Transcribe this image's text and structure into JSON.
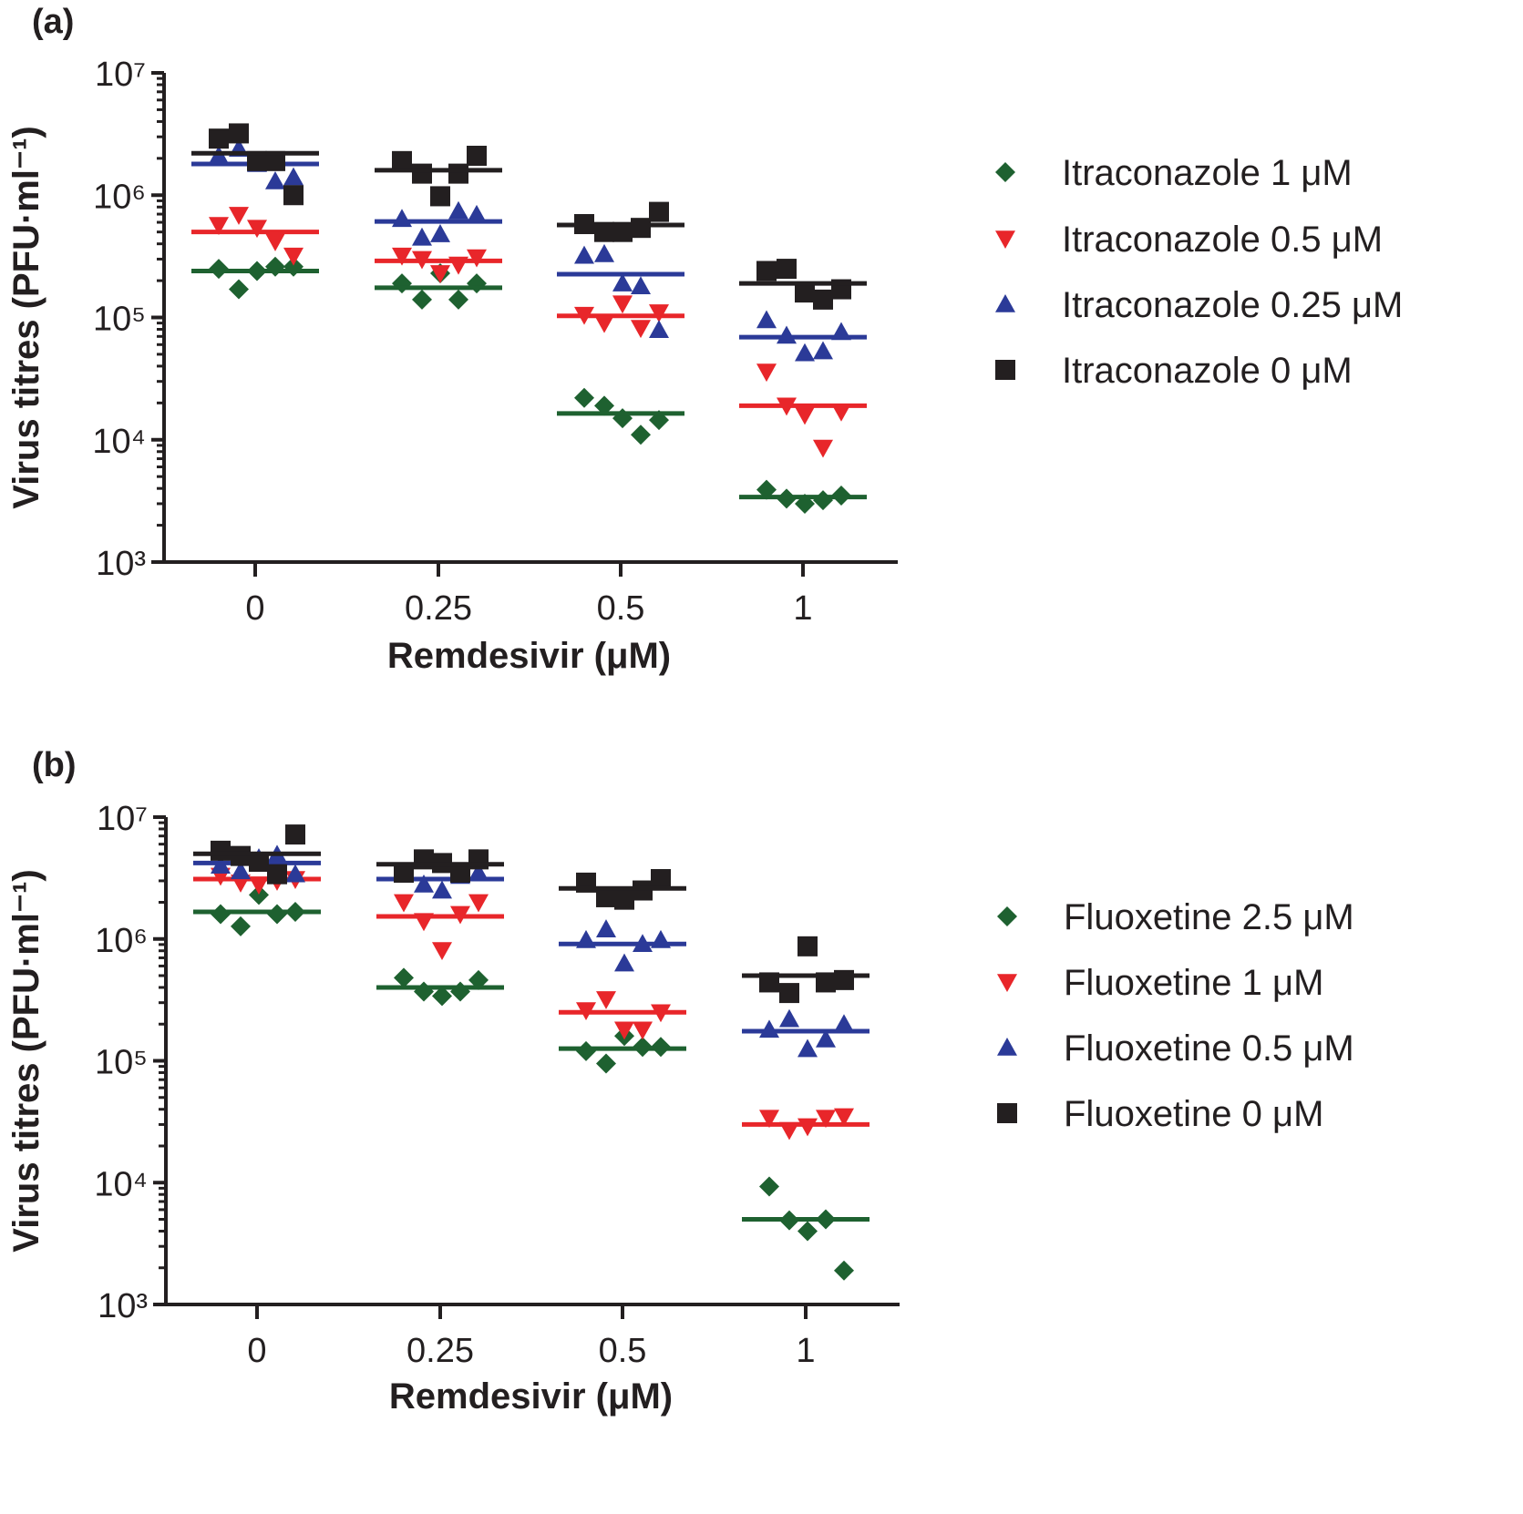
{
  "chart_data": [
    {
      "type": "scatter",
      "panel_label": "(a)",
      "xlabel": "Remdesivir (μM)",
      "ylabel": "Virus titres (PFU·ml⁻¹)",
      "y_scale": "log",
      "ylim": [
        1000,
        10000000
      ],
      "ytick_labels": [
        "10³",
        "10⁴",
        "10⁵",
        "10⁶",
        "10⁷"
      ],
      "categories": [
        "0",
        "0.25",
        "0.5",
        "1"
      ],
      "legend_position": "right",
      "series": [
        {
          "name": "Itraconazole 1 μM",
          "color": "#1e6130",
          "marker": "diamond",
          "points": [
            [
              250000.0,
              170000.0,
              240000.0,
              260000.0,
              260000.0
            ],
            [
              190000.0,
              140000.0,
              230000.0,
              140000.0,
              190000.0
            ],
            [
              22000.0,
              19000.0,
              15000.0,
              11000.0,
              14500.0
            ],
            [
              3900.0,
              3300.0,
              3000.0,
              3200.0,
              3500.0
            ]
          ],
          "means": [
            240000.0,
            175000.0,
            16400.0,
            3400.0
          ]
        },
        {
          "name": "Itraconazole 0.5 μM",
          "color": "#e8262a",
          "marker": "triangle-down",
          "points": [
            [
              570000.0,
              690000.0,
              540000.0,
              420000.0,
              320000.0
            ],
            [
              320000.0,
              300000.0,
              230000.0,
              270000.0,
              310000.0
            ],
            [
              105000.0,
              90000.0,
              130000.0,
              82000.0,
              110000.0
            ],
            [
              36000.0,
              19000.0,
              16000.0,
              8600.0,
              17000.0
            ]
          ],
          "means": [
            500000.0,
            290000.0,
            103000.0,
            19000.0
          ]
        },
        {
          "name": "Itraconazole 0.25 μM",
          "color": "#2b3a98",
          "marker": "triangle-up",
          "points": [
            [
              2100000.0,
              2400000.0,
              1800000.0,
              1300000.0,
              1400000.0
            ],
            [
              640000.0,
              450000.0,
              480000.0,
              740000.0,
              690000.0
            ],
            [
              320000.0,
              330000.0,
              190000.0,
              180000.0,
              79000.0
            ],
            [
              95000.0,
              71000.0,
              51000.0,
              53000.0,
              76000.0
            ]
          ],
          "means": [
            1800000.0,
            610000.0,
            226000.0,
            69000.0
          ]
        },
        {
          "name": "Itraconazole 0 μM",
          "color": "#231f20",
          "marker": "square",
          "points": [
            [
              2900000.0,
              3200000.0,
              1900000.0,
              1900000.0,
              1000000.0
            ],
            [
              1900000.0,
              1500000.0,
              980000.0,
              1500000.0,
              2100000.0
            ],
            [
              580000.0,
              500000.0,
              500000.0,
              540000.0,
              730000.0
            ],
            [
              240000.0,
              250000.0,
              160000.0,
              140000.0,
              170000.0
            ]
          ],
          "means": [
            2200000.0,
            1600000.0,
            570000.0,
            190000.0
          ]
        }
      ]
    },
    {
      "type": "scatter",
      "panel_label": "(b)",
      "xlabel": "Remdesivir (μM)",
      "ylabel": "Virus titres (PFU·ml⁻¹)",
      "y_scale": "log",
      "ylim": [
        1000,
        10000000
      ],
      "ytick_labels": [
        "10³",
        "10⁴",
        "10⁵",
        "10⁶",
        "10⁷"
      ],
      "categories": [
        "0",
        "0.25",
        "0.5",
        "1"
      ],
      "legend_position": "right",
      "series": [
        {
          "name": "Fluoxetine 2.5 μM",
          "color": "#1e6130",
          "marker": "diamond",
          "points": [
            [
              1600000.0,
              1270000.0,
              2300000.0,
              1600000.0,
              1670000.0
            ],
            [
              480000.0,
              370000.0,
              340000.0,
              370000.0,
              460000.0
            ],
            [
              120000.0,
              95000.0,
              160000.0,
              130000.0,
              130000.0
            ],
            [
              9300.0,
              4900.0,
              4000.0,
              5000.0,
              1900.0
            ]
          ],
          "means": [
            1670000.0,
            400000.0,
            126000.0,
            5000.0
          ]
        },
        {
          "name": "Fluoxetine 1 μM",
          "color": "#e8262a",
          "marker": "triangle-down",
          "points": [
            [
              3300000.0,
              2900000.0,
              2800000.0,
              3000000.0,
              3100000.0
            ],
            [
              2000000.0,
              1400000.0,
              810000.0,
              1600000.0,
              2000000.0
            ],
            [
              260000.0,
              320000.0,
              180000.0,
              180000.0,
              250000.0
            ],
            [
              34000.0,
              27000.0,
              29000.0,
              34000.0,
              35000.0
            ]
          ],
          "means": [
            3100000.0,
            1530000.0,
            250000.0,
            30000.0
          ]
        },
        {
          "name": "Fluoxetine 0.5 μM",
          "color": "#2b3a98",
          "marker": "triangle-up",
          "points": [
            [
              4000000.0,
              3600000.0,
              4600000.0,
              4900000.0,
              3400000.0
            ],
            [
              3400000.0,
              2800000.0,
              2500000.0,
              3300000.0,
              3500000.0
            ],
            [
              980000.0,
              1200000.0,
              630000.0,
              910000.0,
              980000.0
            ],
            [
              180000.0,
              220000.0,
              125000.0,
              150000.0,
              200000.0
            ]
          ],
          "means": [
            4200000.0,
            3100000.0,
            910000.0,
            175000.0
          ]
        },
        {
          "name": "Fluoxetine 0 μM",
          "color": "#231f20",
          "marker": "square",
          "points": [
            [
              5300000.0,
              4800000.0,
              4300000.0,
              3400000.0,
              7200000.0
            ],
            [
              3500000.0,
              4500000.0,
              4200000.0,
              3500000.0,
              4500000.0
            ],
            [
              2900000.0,
              2200000.0,
              2100000.0,
              2500000.0,
              3100000.0
            ],
            [
              440000.0,
              360000.0,
              870000.0,
              440000.0,
              460000.0
            ]
          ],
          "means": [
            5000000.0,
            4100000.0,
            2600000.0,
            500000.0
          ]
        }
      ]
    }
  ]
}
